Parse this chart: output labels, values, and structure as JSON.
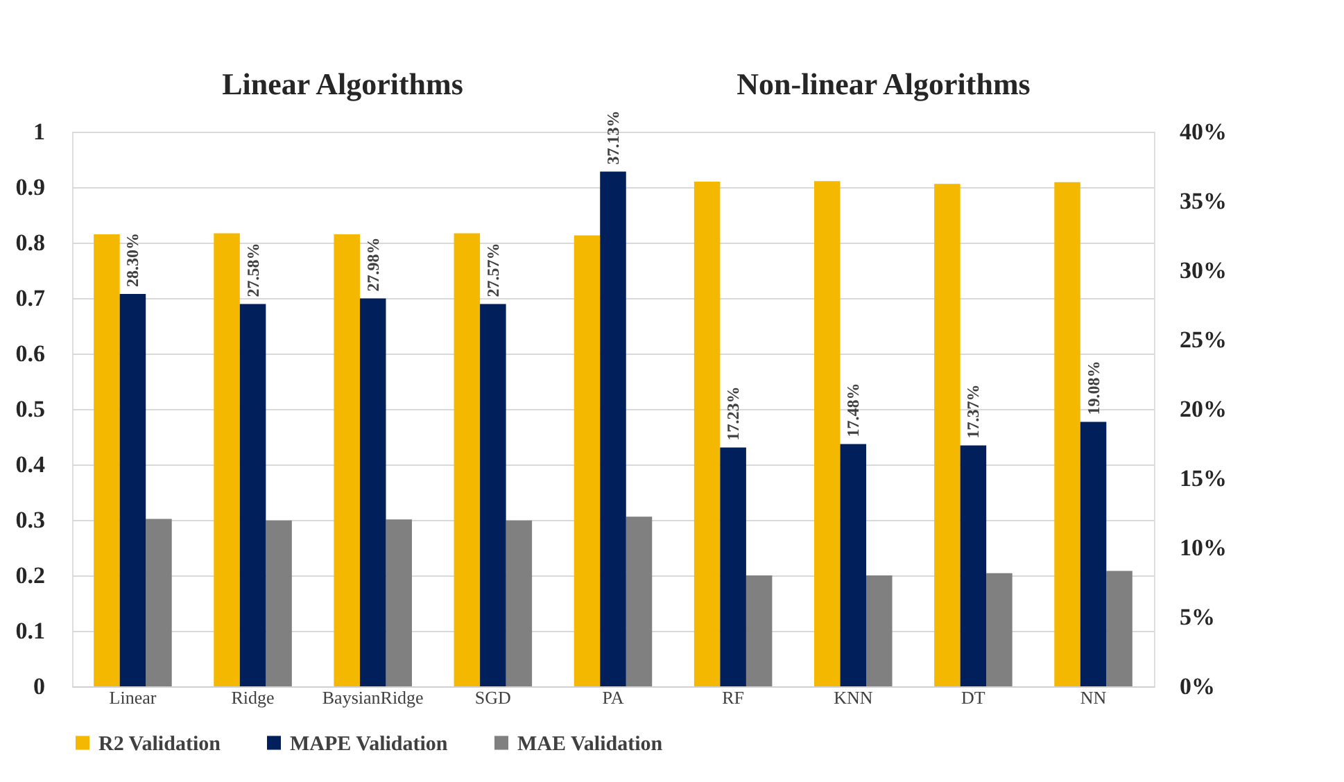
{
  "chart_data": {
    "type": "bar",
    "annotations": [
      "Linear Algorithms",
      "Non-linear Algorithms"
    ],
    "categories": [
      "Linear",
      "Ridge",
      "BaysianRidge",
      "SGD",
      "PA",
      "RF",
      "KNN",
      "DT",
      "NN"
    ],
    "series": [
      {
        "name": "R2 Validation",
        "color": "#f5b800",
        "values": [
          0.815,
          0.817,
          0.815,
          0.817,
          0.813,
          0.91,
          0.911,
          0.906,
          0.909
        ]
      },
      {
        "name": "MAPE Validation",
        "color": "#001f5b",
        "axis": "y2",
        "values": [
          28.3,
          27.58,
          27.98,
          27.57,
          37.13,
          17.23,
          17.48,
          17.37,
          19.08
        ],
        "value_labels": [
          "28.30%",
          "27.58%",
          "27.98%",
          "27.57%",
          "37.13%",
          "17.23%",
          "17.48%",
          "17.37%",
          "19.08%"
        ]
      },
      {
        "name": "MAE Validation",
        "color": "#808080",
        "values": [
          0.302,
          0.299,
          0.301,
          0.299,
          0.306,
          0.2,
          0.2,
          0.204,
          0.208
        ]
      }
    ],
    "ylim": [
      0,
      1
    ],
    "yticks": [
      0,
      0.1,
      0.2,
      0.3,
      0.4,
      0.5,
      0.6,
      0.7,
      0.8,
      0.9,
      1
    ],
    "y2lim": [
      0,
      40
    ],
    "y2ticks": [
      {
        "value": 0,
        "label": "0%"
      },
      {
        "value": 5,
        "label": "5%"
      },
      {
        "value": 10,
        "label": "10%"
      },
      {
        "value": 15,
        "label": "15%"
      },
      {
        "value": 20,
        "label": "20%"
      },
      {
        "value": 25,
        "label": "25%"
      },
      {
        "value": 30,
        "label": "30%"
      },
      {
        "value": 35,
        "label": "35%"
      },
      {
        "value": 40,
        "label": "40%"
      }
    ],
    "grid": "y",
    "legend": "bottom"
  }
}
